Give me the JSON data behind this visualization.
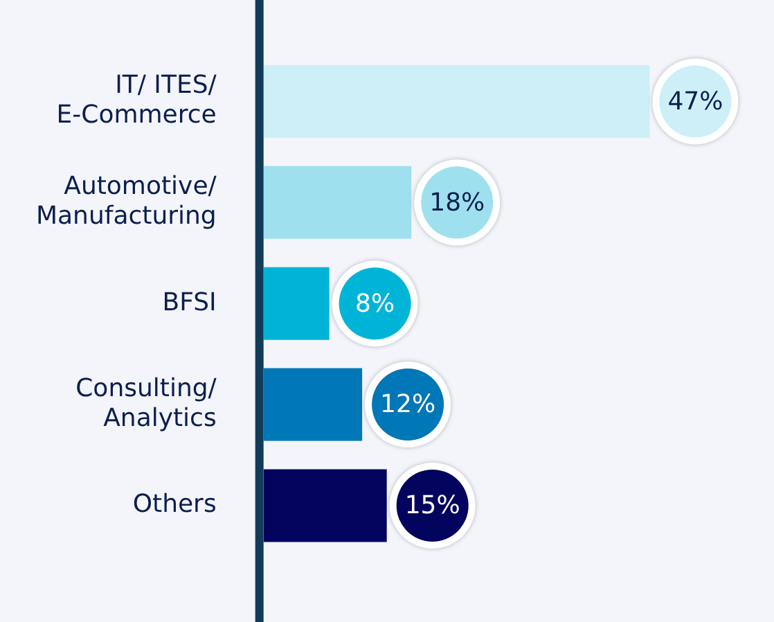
{
  "chart_data": {
    "type": "bar",
    "orientation": "horizontal",
    "categories": [
      "IT/ ITES/\nE-Commerce",
      "Automotive/\nManufacturing",
      "BFSI",
      "Consulting/\nAnalytics",
      "Others"
    ],
    "values": [
      47,
      18,
      8,
      12,
      15
    ],
    "colors": [
      "#cdeff7",
      "#9fe0ef",
      "#00b4d8",
      "#0077b6",
      "#03045e"
    ],
    "value_labels": [
      "47%",
      "18%",
      "8%",
      "12%",
      "15%"
    ],
    "grid": false,
    "legend": false
  }
}
